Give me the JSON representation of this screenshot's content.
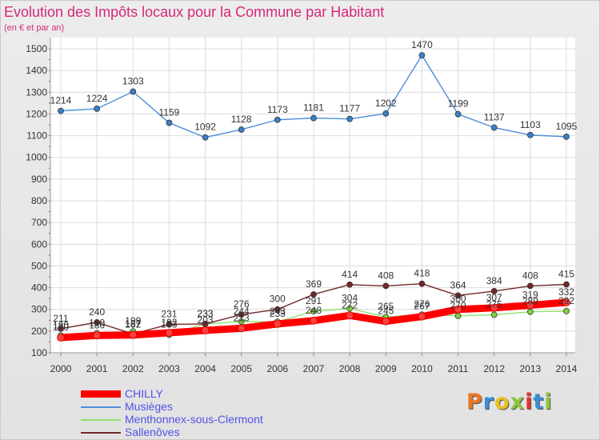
{
  "title": "Evolution des Impôts locaux pour la Commune par Habitant",
  "subtitle": "(en € et par an)",
  "logo": {
    "text": "Proxiti",
    "letters": [
      "P",
      "r",
      "o",
      "x",
      "i",
      "t",
      "i"
    ],
    "colors": [
      "#e87722",
      "#3a8fd6",
      "#e8c021",
      "#8dc63f",
      "#e8322a",
      "#3a8fd6",
      "#8dc63f"
    ]
  },
  "chart_data": {
    "type": "line",
    "title": "Evolution des Impôts locaux pour la Commune par Habitant",
    "subtitle": "(en € et par an)",
    "xlabel": "",
    "ylabel": "",
    "ylim": [
      100,
      1500
    ],
    "yticks": [
      100,
      200,
      300,
      400,
      500,
      600,
      700,
      800,
      900,
      1000,
      1100,
      1200,
      1300,
      1400,
      1500
    ],
    "grid": true,
    "legend_position": "bottom-left",
    "x": [
      "2000",
      "2001",
      "2002",
      "2003",
      "2004",
      "2005",
      "2006",
      "2007",
      "2008",
      "2009",
      "2010",
      "2011",
      "2012",
      "2013",
      "2014"
    ],
    "series": [
      {
        "name": "CHILLY",
        "color": "#ff0000",
        "marker": "#ff4040",
        "thick": true,
        "values": [
          170,
          180,
          182,
          192,
          203,
          213,
          233,
          248,
          272,
          245,
          267,
          300,
          307,
          319,
          332
        ]
      },
      {
        "name": "Musièges",
        "color": "#4a8fd8",
        "marker": "#3a80c8",
        "thick": false,
        "values": [
          1214,
          1224,
          1303,
          1159,
          1092,
          1128,
          1173,
          1181,
          1177,
          1202,
          1470,
          1199,
          1137,
          1103,
          1095
        ]
      },
      {
        "name": "Menthonnex-sous-Clermont",
        "color": "#90e070",
        "marker": "#80d040",
        "thick": false,
        "values": [
          180,
          190,
          199,
          183,
          233,
          244,
          243,
          291,
          304,
          265,
          276,
          270,
          275,
          289,
          292
        ]
      },
      {
        "name": "Sallenôves",
        "color": "#702828",
        "marker": "#702828",
        "thick": false,
        "values": [
          211,
          240,
          187,
          231,
          233,
          276,
          300,
          369,
          414,
          408,
          418,
          364,
          384,
          408,
          415
        ]
      }
    ]
  }
}
